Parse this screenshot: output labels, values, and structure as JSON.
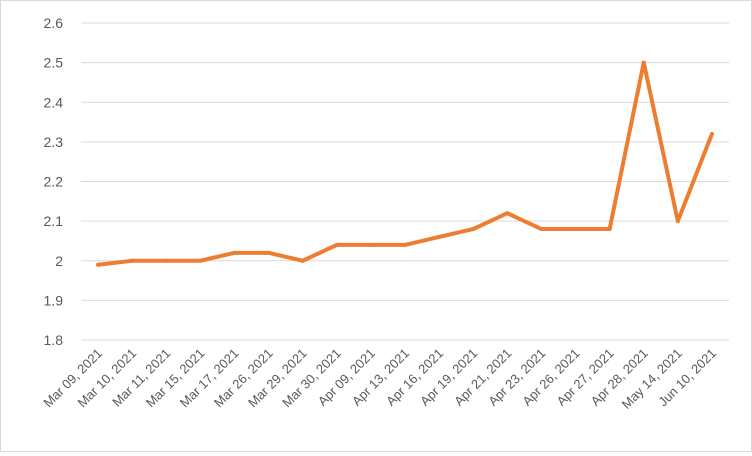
{
  "chart_data": {
    "type": "line",
    "title": "",
    "xlabel": "",
    "ylabel": "",
    "ylim": [
      1.8,
      2.6
    ],
    "ytick_step": 0.1,
    "yticks": [
      "1.8",
      "1.9",
      "2",
      "2.1",
      "2.2",
      "2.3",
      "2.4",
      "2.5",
      "2.6"
    ],
    "grid": true,
    "legend": "none",
    "categories": [
      "Mar 09, 2021",
      "Mar 10, 2021",
      "Mar 11, 2021",
      "Mar 15, 2021",
      "Mar 17, 2021",
      "Mar 26, 2021",
      "Mar 29, 2021",
      "Mar 30, 2021",
      "Apr 09, 2021",
      "Apr 13, 2021",
      "Apr 16, 2021",
      "Apr 19, 2021",
      "Apr 21, 2021",
      "Apr 23, 2021",
      "Apr 26, 2021",
      "Apr 27, 2021",
      "Apr 28, 2021",
      "May 14, 2021",
      "Jun 10, 2021"
    ],
    "series": [
      {
        "values": [
          1.99,
          2.0,
          2.0,
          2.0,
          2.02,
          2.02,
          2.0,
          2.04,
          2.04,
          2.04,
          2.06,
          2.08,
          2.12,
          2.08,
          2.08,
          2.08,
          2.5,
          2.1,
          2.32
        ],
        "color": "#ED7D31"
      }
    ],
    "colors": {
      "grid": "#d9d9d9",
      "tick_text": "#595959"
    }
  }
}
